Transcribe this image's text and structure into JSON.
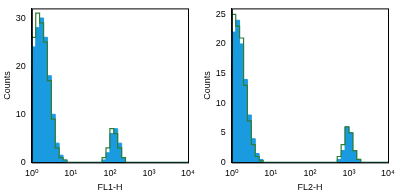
{
  "chart_data": [
    {
      "type": "histogram",
      "x_label": "FL1-H",
      "y_label": "Counts",
      "log": "x",
      "grid": false,
      "bins": [
        1,
        1.26,
        1.58,
        2.0,
        2.51,
        3.16,
        3.98,
        5.01,
        6.31,
        7.94,
        10,
        12.6,
        15.8,
        20.0,
        25.1,
        31.6,
        39.8,
        50.1,
        63.1,
        79.4,
        100,
        126,
        158,
        200,
        251,
        316,
        398,
        501,
        631,
        794,
        1000,
        1260,
        1580,
        2000,
        2510,
        3160,
        3980,
        5010,
        6310,
        7940,
        10000
      ],
      "series": [
        {
          "color": "#1a9be0",
          "values": [
            18,
            24,
            28,
            30,
            26,
            18,
            10,
            4,
            1.5,
            0.5,
            0,
            0,
            0,
            0,
            0,
            0,
            0,
            0,
            0,
            0.5,
            2,
            6,
            7,
            4,
            1,
            0,
            0,
            0,
            0,
            0,
            0,
            0,
            0,
            0,
            0,
            0,
            0,
            0,
            0,
            0
          ]
        },
        {
          "color": "#2e7d32",
          "values": [
            20,
            26,
            31,
            29,
            25,
            17,
            9,
            3,
            1,
            0.5,
            0,
            0,
            0,
            0,
            0,
            0,
            0,
            0,
            0,
            1,
            3,
            7,
            6,
            3,
            1,
            0,
            0,
            0,
            0,
            0,
            0,
            0,
            0,
            0,
            0,
            0,
            0,
            0,
            0,
            0
          ]
        }
      ],
      "xlim": [
        1,
        10000
      ],
      "xticks": [
        {
          "value": 1,
          "label": "10⁰"
        },
        {
          "value": 10,
          "label": "10¹"
        },
        {
          "value": 100,
          "label": "10²"
        },
        {
          "value": 1000,
          "label": "10³"
        },
        {
          "value": 10000,
          "label": "10⁴"
        }
      ],
      "ylim": [
        0,
        32
      ],
      "yticks": [
        0,
        10,
        20,
        30
      ]
    },
    {
      "type": "histogram",
      "x_label": "FL2-H",
      "y_label": "Counts",
      "log": "x",
      "grid": false,
      "bins": [
        1,
        1.26,
        1.58,
        2.0,
        2.51,
        3.16,
        3.98,
        5.01,
        6.31,
        7.94,
        10,
        12.6,
        15.8,
        20.0,
        25.1,
        31.6,
        39.8,
        50.1,
        63.1,
        79.4,
        100,
        126,
        158,
        200,
        251,
        316,
        398,
        501,
        631,
        794,
        1000,
        1260,
        1580,
        2000,
        2510,
        3160,
        3980,
        5010,
        6310,
        7940,
        10000
      ],
      "series": [
        {
          "color": "#1a9be0",
          "values": [
            16,
            22,
            24,
            20,
            14,
            8,
            4,
            1.5,
            0.5,
            0,
            0,
            0,
            0,
            0,
            0,
            0,
            0,
            0,
            0,
            0,
            0,
            0,
            0,
            0,
            0,
            0,
            0,
            0,
            0.5,
            2,
            6,
            5,
            2,
            0.5,
            0,
            0,
            0,
            0,
            0,
            0
          ]
        },
        {
          "color": "#2e7d32",
          "values": [
            18,
            25,
            23,
            21,
            13,
            7,
            3,
            1,
            0.3,
            0,
            0,
            0,
            0,
            0,
            0,
            0,
            0,
            0,
            0,
            0,
            0,
            0,
            0,
            0,
            0,
            0,
            0,
            0,
            1,
            3,
            6,
            5,
            2,
            0.5,
            0,
            0,
            0,
            0,
            0,
            0
          ]
        }
      ],
      "xlim": [
        1,
        10000
      ],
      "xticks": [
        {
          "value": 1,
          "label": "10⁰"
        },
        {
          "value": 10,
          "label": "10¹"
        },
        {
          "value": 100,
          "label": "10²"
        },
        {
          "value": 1000,
          "label": "10³"
        },
        {
          "value": 10000,
          "label": "10⁴"
        }
      ],
      "ylim": [
        0,
        26
      ],
      "yticks": [
        0,
        5,
        10,
        15,
        20,
        25
      ]
    }
  ]
}
